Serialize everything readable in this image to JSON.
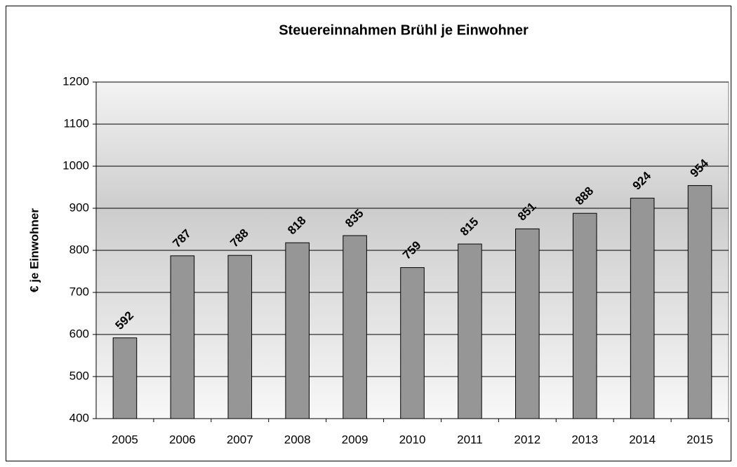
{
  "chart_data": {
    "type": "bar",
    "title": "Steuereinnahmen Brühl je Einwohner",
    "ylabel": "€ je Einwohner",
    "categories": [
      "2005",
      "2006",
      "2007",
      "2008",
      "2009",
      "2010",
      "2011",
      "2012",
      "2013",
      "2014",
      "2015"
    ],
    "values": [
      592,
      787,
      788,
      818,
      835,
      759,
      815,
      851,
      888,
      924,
      954
    ],
    "color": "#969696",
    "ylim": [
      400,
      1200
    ],
    "yticks": [
      400,
      500,
      600,
      700,
      800,
      900,
      1000,
      1100,
      1200
    ],
    "grid": true
  }
}
